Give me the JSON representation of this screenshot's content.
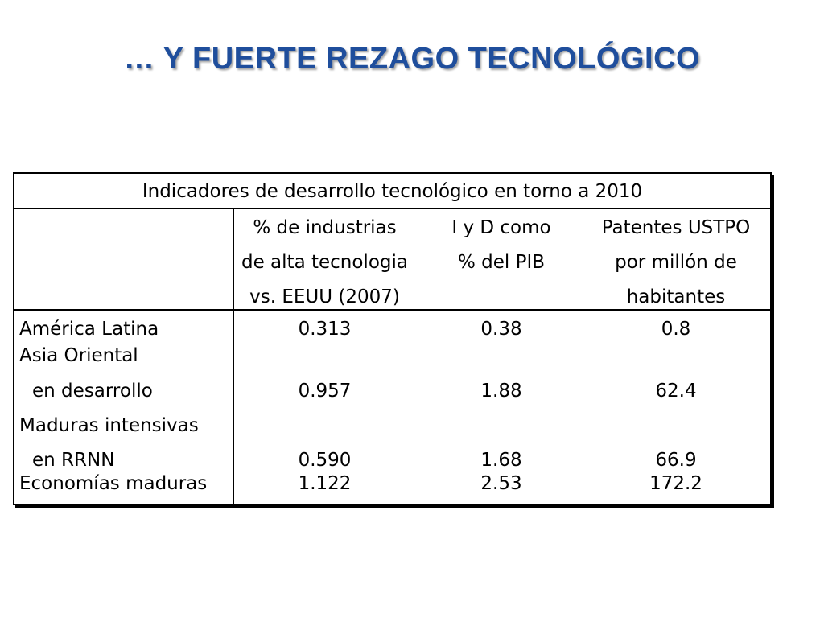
{
  "slide": {
    "title": "… Y FUERTE REZAGO TECNOLÓGICO"
  },
  "table": {
    "caption": "Indicadores de desarrollo tecnológico en torno a 2010",
    "headers": [
      [
        "% de industrias",
        "de alta tecnologia",
        "vs. EEUU (2007)"
      ],
      [
        "I y D como",
        "% del PIB"
      ],
      [
        "Patentes USTPO",
        "por millón de",
        "habitantes"
      ]
    ],
    "rows": [
      {
        "label": [
          "América Latina"
        ],
        "values": [
          "0.313",
          "0.38",
          "0.8"
        ]
      },
      {
        "label": [
          "Asia Oriental",
          "en desarrollo"
        ],
        "values": [
          "0.957",
          "1.88",
          "62.4"
        ]
      },
      {
        "label": [
          "Maduras intensivas",
          "en RRNN"
        ],
        "values": [
          "0.590",
          "1.68",
          "66.9"
        ]
      },
      {
        "label": [
          "Economías maduras"
        ],
        "values": [
          "1.122",
          "2.53",
          "172.2"
        ]
      }
    ]
  },
  "colors": {
    "title": "#1f4e9c",
    "border": "#000000",
    "text": "#000000"
  }
}
